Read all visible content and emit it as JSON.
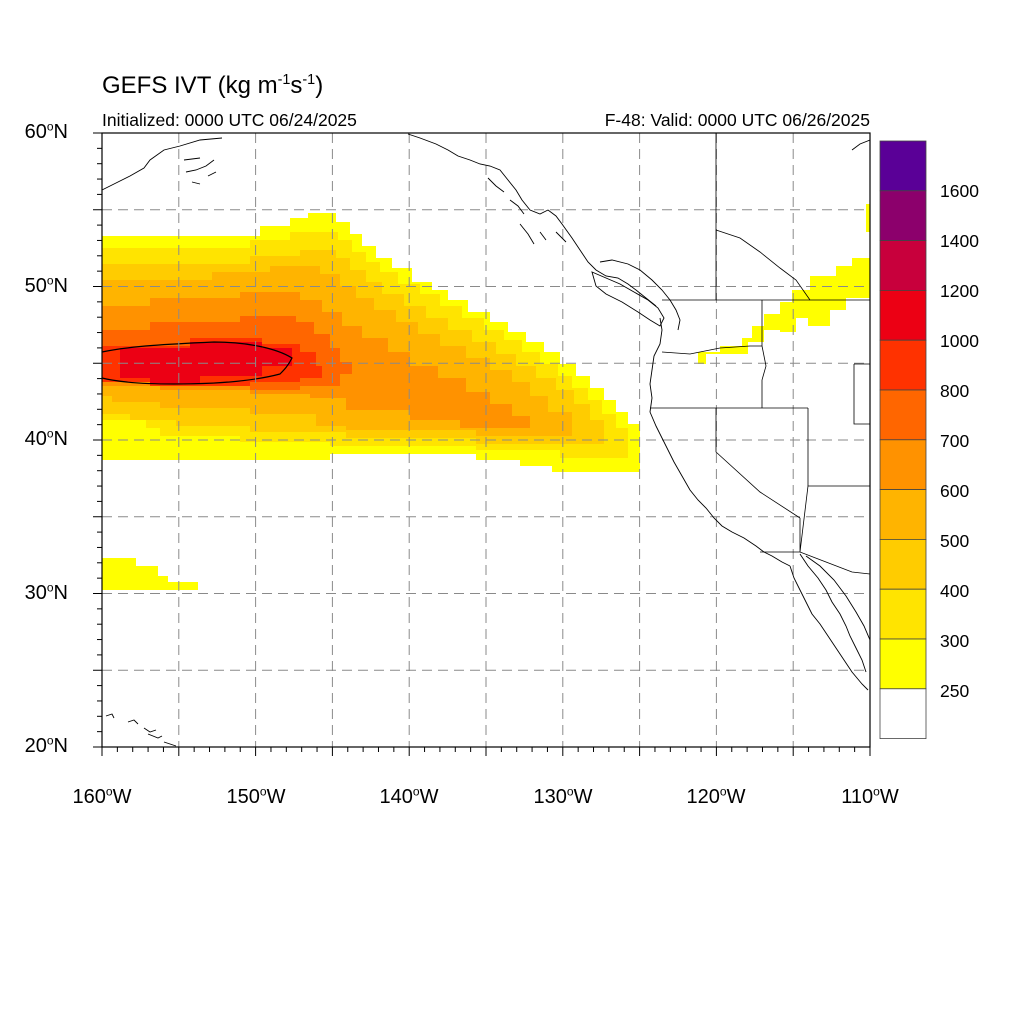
{
  "title": {
    "prefix": "GEFS IVT (kg m",
    "exp1": "-1",
    "mid": "s",
    "exp2": "-1",
    "suffix": ")"
  },
  "initialized": "Initialized: 0000 UTC 06/24/2025",
  "valid": "F-48: Valid: 0000 UTC 06/26/2025",
  "lat_labels": [
    {
      "deg": "60",
      "hem": "N"
    },
    {
      "deg": "50",
      "hem": "N"
    },
    {
      "deg": "40",
      "hem": "N"
    },
    {
      "deg": "30",
      "hem": "N"
    },
    {
      "deg": "20",
      "hem": "N"
    }
  ],
  "lon_labels": [
    {
      "deg": "160",
      "hem": "W"
    },
    {
      "deg": "150",
      "hem": "W"
    },
    {
      "deg": "140",
      "hem": "W"
    },
    {
      "deg": "130",
      "hem": "W"
    },
    {
      "deg": "120",
      "hem": "W"
    },
    {
      "deg": "110",
      "hem": "W"
    }
  ],
  "colorbar": {
    "labels": [
      "1600",
      "1400",
      "1200",
      "1000",
      "800",
      "700",
      "600",
      "500",
      "400",
      "300",
      "250"
    ],
    "colors": [
      "#5a0097",
      "#8c006c",
      "#c8003c",
      "#ec0014",
      "#ff3200",
      "#ff6600",
      "#ff9200",
      "#ffb400",
      "#ffcc00",
      "#ffe400",
      "#ffff00",
      "#ffffff"
    ]
  },
  "map": {
    "lon_range": [
      -160,
      -110
    ],
    "lat_range": [
      20,
      60
    ],
    "gridline_color": "#8a8a8a",
    "ivt_levels": [
      250,
      300,
      400,
      500,
      600,
      700,
      800,
      1000
    ],
    "ivt_colors": [
      "#ffff00",
      "#ffe400",
      "#ffcc00",
      "#ffb400",
      "#ff9200",
      "#ff6600",
      "#ff3200",
      "#ec0014"
    ]
  }
}
